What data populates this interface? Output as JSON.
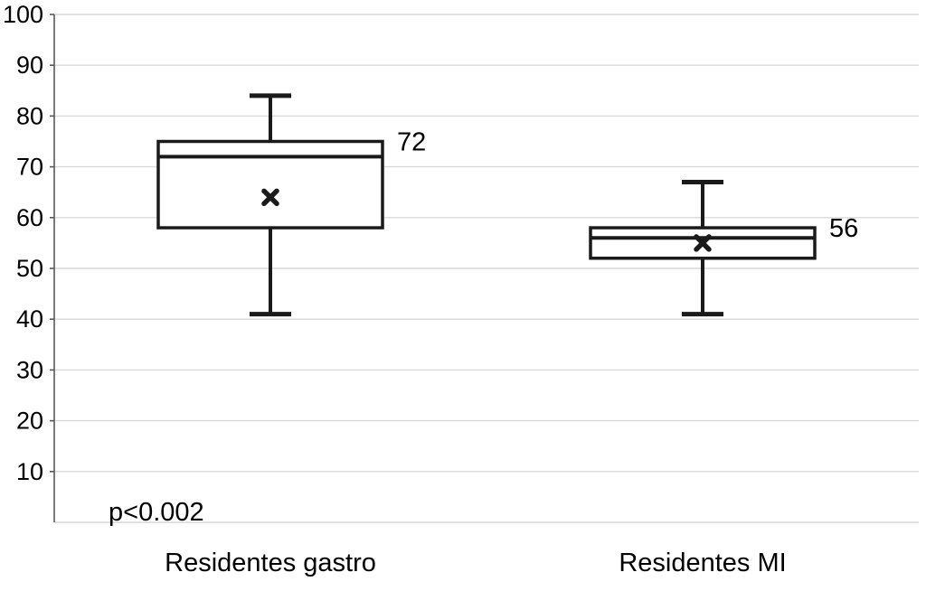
{
  "chart_data": {
    "type": "boxplot",
    "title": "",
    "xlabel": "",
    "ylabel": "",
    "categories": [
      "Residentes gastro",
      "Residentes MI"
    ],
    "series": [
      {
        "name": "Residentes gastro",
        "whisker_min": 41,
        "q1": 58,
        "median": 72,
        "q3": 75,
        "whisker_max": 84,
        "mean": 64,
        "data_label": "72"
      },
      {
        "name": "Residentes MI",
        "whisker_min": 41,
        "q1": 52,
        "median": 56,
        "q3": 58,
        "whisker_max": 67,
        "mean": 55,
        "data_label": "56"
      }
    ],
    "ylim": [
      0,
      100
    ],
    "yticks": [
      10,
      20,
      30,
      40,
      50,
      60,
      70,
      80,
      90,
      100
    ],
    "grid": true,
    "legend_position": "none",
    "annotation": "p<0.002"
  },
  "colors": {
    "background": "#ffffff",
    "box_stroke": "#1a1a1a",
    "box_fill": "#ffffff",
    "gridline": "#d9d9d9",
    "axis_line": "#595959",
    "text": "#000000"
  }
}
